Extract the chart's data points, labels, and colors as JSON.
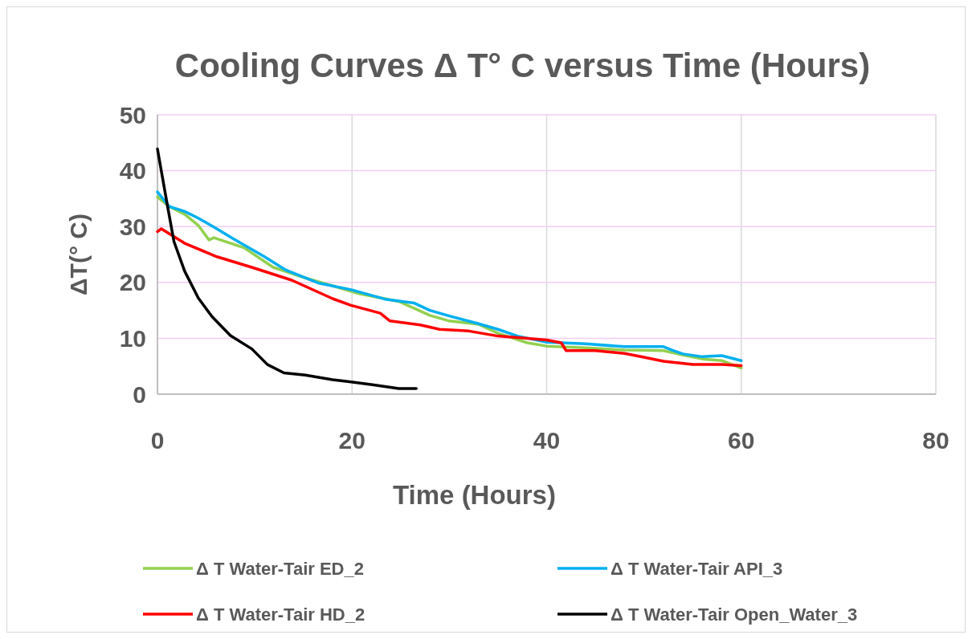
{
  "chart_data": {
    "type": "line",
    "title": "Cooling Curves Δ T° C versus Time (Hours)",
    "xlabel": "Time (Hours)",
    "ylabel": "ΔT(° C)",
    "xlim": [
      0,
      80
    ],
    "xticks": [
      0,
      20,
      40,
      60,
      80
    ],
    "ylim": [
      0,
      50
    ],
    "yticks": [
      0,
      10,
      20,
      30,
      40,
      50
    ],
    "grid": true,
    "legend": "bottom",
    "marker": "none",
    "line_style": "solid",
    "series": [
      {
        "name": "Δ T Water-Tair ED_2",
        "color": "#92d050",
        "x": [
          0,
          1.2,
          2.8,
          4.2,
          5.3,
          5.8,
          8.9,
          11.9,
          15.2,
          18,
          20.7,
          24.8,
          28,
          30,
          33,
          35,
          38,
          40,
          44,
          48,
          52,
          54,
          56,
          58,
          60
        ],
        "values": [
          35.3,
          33.6,
          32.2,
          30.2,
          27.6,
          28,
          26.2,
          22.7,
          20.8,
          19.4,
          18,
          16.6,
          14.1,
          13.1,
          12.5,
          10.9,
          9.2,
          8.6,
          8.3,
          7.9,
          7.8,
          7,
          6.3,
          6,
          4.7
        ]
      },
      {
        "name": "Δ T Water-Tair API_3",
        "color": "#00b0f0",
        "x": [
          0,
          1.2,
          2.8,
          4.2,
          6.1,
          7.7,
          11,
          13.2,
          16.5,
          19.9,
          23.4,
          26.4,
          28,
          30,
          33,
          35,
          37,
          40,
          44,
          48,
          52,
          53,
          54,
          56,
          58,
          60
        ],
        "values": [
          36.2,
          33.6,
          32.7,
          31.5,
          29.6,
          27.9,
          24.6,
          22.2,
          19.9,
          18.7,
          17,
          16.3,
          15,
          14,
          12.6,
          11.6,
          10.4,
          9.3,
          9,
          8.5,
          8.5,
          7.8,
          7.2,
          6.7,
          6.9,
          6
        ]
      },
      {
        "name": "Δ T Water-Tair HD_2",
        "color": "#ff0000",
        "x": [
          0,
          0.4,
          2.8,
          6.1,
          9.7,
          13.8,
          18,
          19.9,
          22.9,
          23.9,
          27,
          29,
          32,
          35,
          38,
          40,
          41.5,
          42,
          45,
          48,
          50,
          52,
          55,
          58,
          60
        ],
        "values": [
          29.1,
          29.6,
          27,
          24.6,
          22.7,
          20.4,
          17.1,
          15.9,
          14.5,
          13.1,
          12.4,
          11.6,
          11.3,
          10.4,
          10,
          9.7,
          9.2,
          7.8,
          7.8,
          7.3,
          6.6,
          5.9,
          5.3,
          5.3,
          5.1
        ]
      },
      {
        "name": "Δ T Water-Tair Open_Water_3",
        "color": "#000000",
        "x": [
          0,
          1,
          1.7,
          2.8,
          4.2,
          5.6,
          7.5,
          9.7,
          11.3,
          13,
          15.2,
          18,
          19.9,
          22.1,
          24.8,
          26.6
        ],
        "values": [
          43.9,
          34,
          27.3,
          22,
          17.2,
          13.9,
          10.5,
          8.1,
          5.3,
          3.8,
          3.4,
          2.6,
          2.2,
          1.7,
          1,
          1
        ]
      }
    ]
  }
}
